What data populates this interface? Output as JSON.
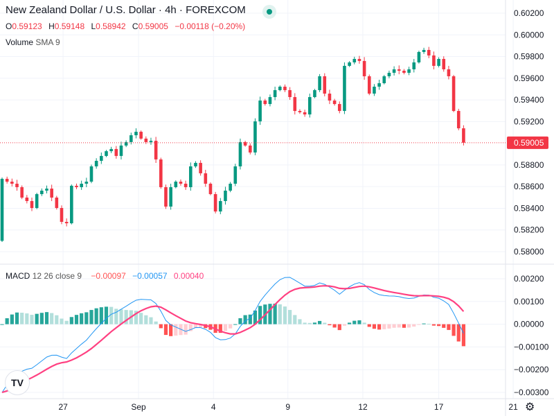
{
  "header": {
    "title": "New Zealand Dollar / U.S. Dollar · 4h · FOREXCOM",
    "ohlc": {
      "o_label": "O",
      "o": "0.59123",
      "h_label": "H",
      "h": "0.59148",
      "l_label": "L",
      "l": "0.58942",
      "c_label": "C",
      "c": "0.59005",
      "change": "−0.00118 (−0.20%)"
    },
    "volume_label": "Volume",
    "volume_sub": "SMA 9"
  },
  "macd_legend": {
    "name": "MACD",
    "params": "12 26 close 9",
    "hist": "−0.00097",
    "macd": "−0.00057",
    "signal": "0.00040"
  },
  "colors": {
    "up": "#089981",
    "down": "#f23645",
    "macd": "#2196f3",
    "signal": "#ff4081",
    "hist_up_strong": "#26a69a",
    "hist_up_weak": "#b2dfdb",
    "hist_down_strong": "#ff5252",
    "hist_down_weak": "#ffcdd2"
  },
  "icons": {
    "logo": "tradingview-logo",
    "settings": "gear-icon",
    "status": "market-open-dot"
  },
  "logo_text": "TV",
  "settings_glyph": "⚙",
  "chart_data": {
    "type": "candlestick",
    "symbol": "NZDUSD",
    "interval": "4h",
    "current_price_label": "0.59005",
    "price_ticks": [
      "0.60200",
      "0.60000",
      "0.59800",
      "0.59600",
      "0.59400",
      "0.59200",
      "0.58800",
      "0.58600",
      "0.58400",
      "0.58200",
      "0.58000"
    ],
    "price_tick_values": [
      0.602,
      0.6,
      0.598,
      0.596,
      0.594,
      0.592,
      0.588,
      0.586,
      0.584,
      0.582,
      0.58
    ],
    "ylim": [
      0.579,
      0.603
    ],
    "macd_ticks": [
      "0.00200",
      "0.00100",
      "0.00000",
      "−0.00100",
      "−0.00200",
      "−0.00300"
    ],
    "macd_tick_values": [
      0.002,
      0.001,
      0,
      -0.001,
      -0.002,
      -0.003
    ],
    "macd_ylim": [
      -0.0033,
      0.0025
    ],
    "x_ticks": [
      {
        "label": "27",
        "index": 12.3
      },
      {
        "label": "Sep",
        "index": 27.5
      },
      {
        "label": "4",
        "index": 42.6
      },
      {
        "label": "9",
        "index": 57.6
      },
      {
        "label": "12",
        "index": 72.7
      },
      {
        "label": "17",
        "index": 88.0
      },
      {
        "label": "21",
        "index": 103
      }
    ],
    "closes": [
      0.58672,
      0.58646,
      0.58627,
      0.58595,
      0.58499,
      0.58467,
      0.58403,
      0.58531,
      0.58563,
      0.58582,
      0.58499,
      0.58403,
      0.58275,
      0.58262,
      0.58608,
      0.58595,
      0.58627,
      0.58646,
      0.58787,
      0.58838,
      0.58883,
      0.58927,
      0.58947,
      0.58883,
      0.58979,
      0.59011,
      0.59074,
      0.59106,
      0.59043,
      0.59011,
      0.59023,
      0.58851,
      0.58595,
      0.58416,
      0.58595,
      0.58646,
      0.58627,
      0.58595,
      0.58787,
      0.58819,
      0.58723,
      0.58627,
      0.58531,
      0.58371,
      0.58467,
      0.58563,
      0.58627,
      0.58787,
      0.59011,
      0.58979,
      0.58915,
      0.59202,
      0.59394,
      0.59362,
      0.59426,
      0.5949,
      0.59522,
      0.5949,
      0.59426,
      0.59298,
      0.59286,
      0.59266,
      0.59426,
      0.5949,
      0.59618,
      0.59458,
      0.59394,
      0.59362,
      0.59298,
      0.59714,
      0.59746,
      0.59778,
      0.59759,
      0.59618,
      0.59458,
      0.59522,
      0.59554,
      0.59618,
      0.5965,
      0.59682,
      0.59669,
      0.5965,
      0.59682,
      0.59746,
      0.59842,
      0.59861,
      0.5981,
      0.59714,
      0.59778,
      0.59682,
      0.59618,
      0.59298,
      0.59138,
      0.59005
    ],
    "first_open": 0.581,
    "macd_seed": -0.0034
  }
}
